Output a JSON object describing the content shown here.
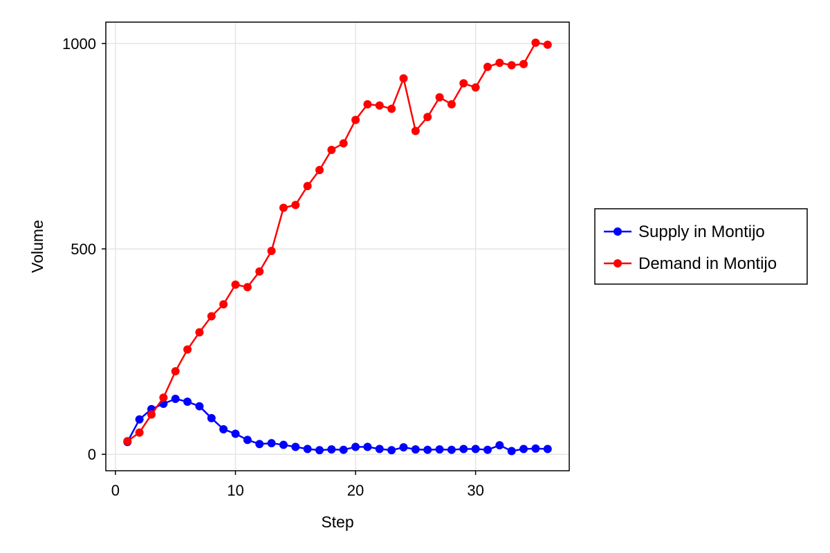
{
  "chart_data": {
    "type": "line",
    "xlabel": "Step",
    "ylabel": "Volume",
    "xlim": [
      -0.8,
      37.8
    ],
    "ylim": [
      -40,
      1052
    ],
    "xticks": [
      0,
      10,
      20,
      30
    ],
    "yticks": [
      0,
      500,
      1000
    ],
    "grid": true,
    "legend_position": "right",
    "x": [
      1,
      2,
      3,
      4,
      5,
      6,
      7,
      8,
      9,
      10,
      11,
      12,
      13,
      14,
      15,
      16,
      17,
      18,
      19,
      20,
      21,
      22,
      23,
      24,
      25,
      26,
      27,
      28,
      29,
      30,
      31,
      32,
      33,
      34,
      35,
      36
    ],
    "series": [
      {
        "name": "Supply in Montijo",
        "color": "#0000ff",
        "values": [
          30,
          85,
          110,
          123,
          135,
          128,
          117,
          88,
          61,
          50,
          35,
          25,
          27,
          23,
          18,
          13,
          10,
          12,
          11,
          18,
          18,
          13,
          10,
          17,
          12,
          11,
          12,
          11,
          13,
          13,
          11,
          22,
          8,
          13,
          14,
          13
        ]
      },
      {
        "name": "Demand in Montijo",
        "color": "#ff0000",
        "values": [
          32,
          53,
          97,
          138,
          202,
          255,
          297,
          336,
          365,
          413,
          407,
          445,
          495,
          600,
          607,
          653,
          692,
          741,
          757,
          814,
          852,
          849,
          841,
          915,
          787,
          821,
          869,
          852,
          903,
          893,
          943,
          953,
          947,
          950,
          1002,
          997
        ]
      }
    ]
  }
}
